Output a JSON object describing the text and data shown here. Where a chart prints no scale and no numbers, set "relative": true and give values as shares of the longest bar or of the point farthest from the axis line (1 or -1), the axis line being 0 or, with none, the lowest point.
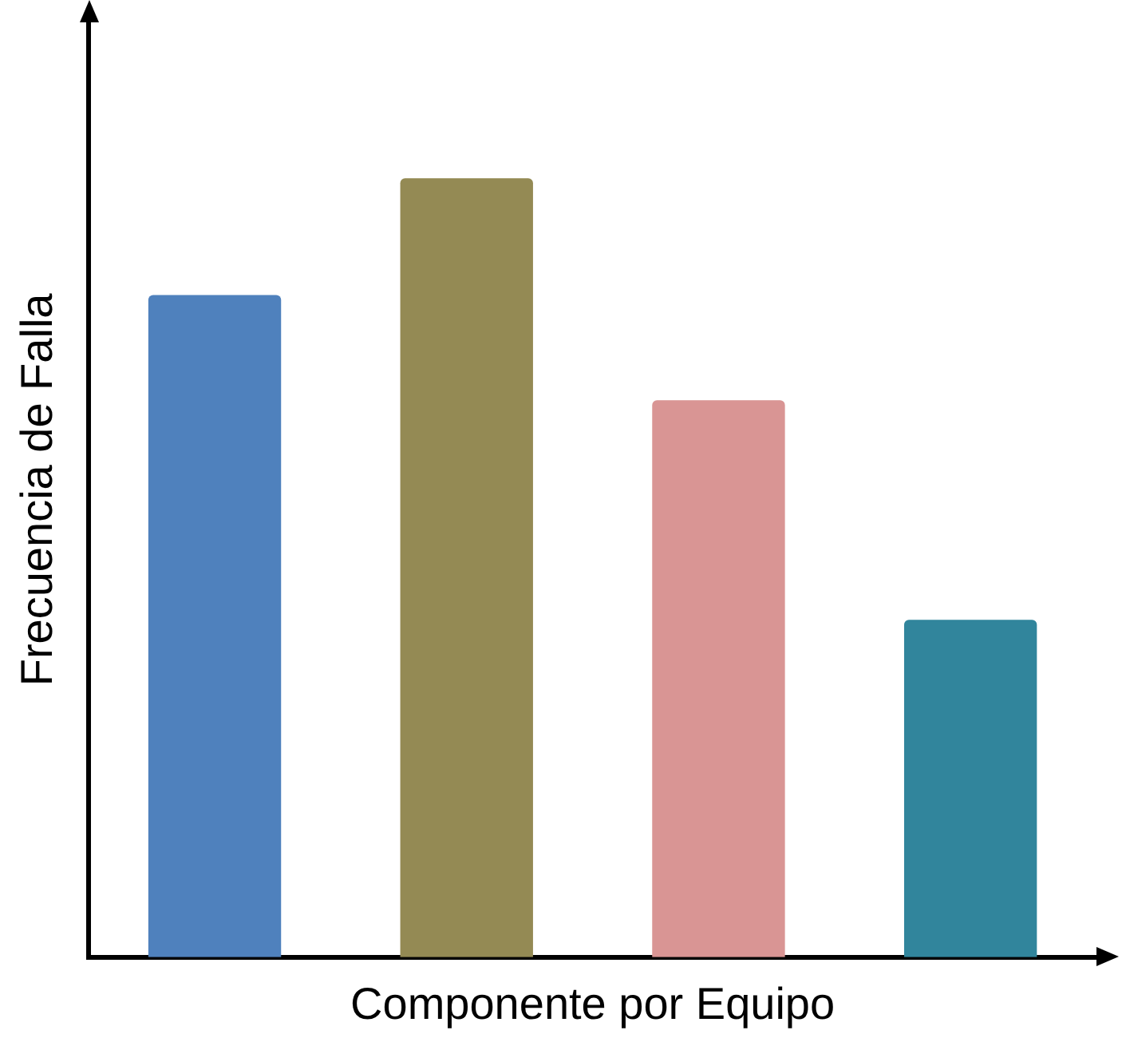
{
  "chart_data": {
    "type": "bar",
    "relative": true,
    "xlabel": "Componente por Equipo",
    "ylabel": "Frecuencia de Falla",
    "categories": [
      null,
      null,
      null,
      null
    ],
    "values": [
      0.85,
      1,
      0.715,
      0.433
    ],
    "colors": [
      "#4f81bd",
      "#948a54",
      "#d99594",
      "#31859c"
    ],
    "grid": false,
    "legend": false
  }
}
